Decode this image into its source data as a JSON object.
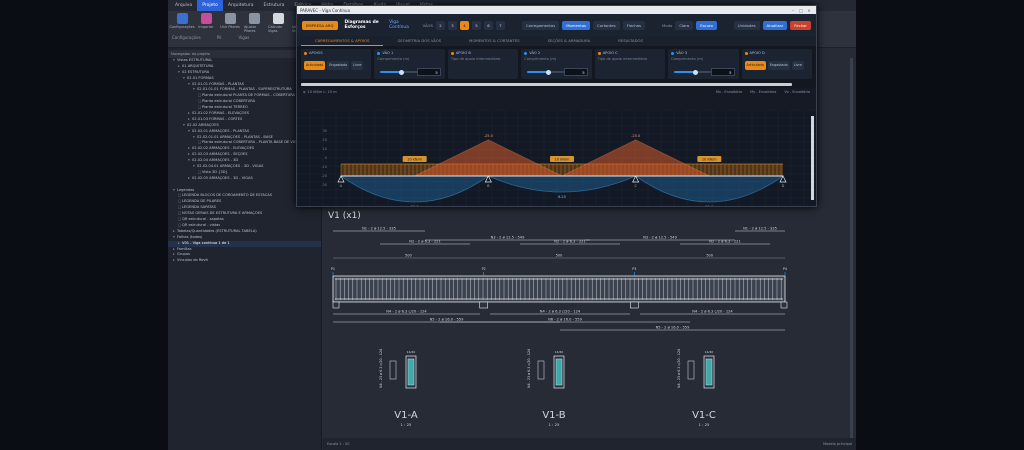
{
  "ribbon": {
    "tabs": [
      "Arquivo",
      "Projeto",
      "Arquitetura",
      "Estrutura",
      "Elétrico",
      "Hidro",
      "Detalhes",
      "Ajuda",
      "Visual",
      "Vistas"
    ],
    "active_tab": 1,
    "tools": [
      {
        "label": "Configurações",
        "color": "#3b6fd1"
      },
      {
        "label": "Importar",
        "color": "#c74d9c"
      },
      {
        "label": "Unir Pilares",
        "color": "#8a93a2"
      },
      {
        "label": "Ajustar Pilares",
        "color": "#8a93a2"
      },
      {
        "label": "Calcular Vigas",
        "color": "#d5d9e0"
      },
      {
        "label": "Verificar Vigas",
        "color": "#8a93a2"
      },
      {
        "label": "Relatórios",
        "color": "#e8a33c"
      }
    ],
    "groups": [
      "Configurações",
      "Pil.",
      "Vigas"
    ]
  },
  "tree": {
    "header": "Navegador do projeto",
    "rows": [
      {
        "t": "Vistas ESTRUTURAL",
        "d": 1,
        "i": "▾"
      },
      {
        "t": "01 ARQUITETURA",
        "d": 2,
        "i": "▸"
      },
      {
        "t": "02 ESTRUTURA",
        "d": 2,
        "i": "▾"
      },
      {
        "t": "02.01 FÔRMAS",
        "d": 3,
        "i": "▾"
      },
      {
        "t": "02.01.01 FÔRMAS - PLANTAS",
        "d": 4,
        "i": "▾"
      },
      {
        "t": "02.01.01.01 FÔRMAS - PLANTAS - SUPERESTRUTURA",
        "d": 5,
        "i": "▾"
      },
      {
        "t": "Planta estrutural PLANTA DE FÔRMAS - COBERTURA",
        "d": 6,
        "i": "□"
      },
      {
        "t": "Planta estrutural COBERTURA",
        "d": 6,
        "i": "□"
      },
      {
        "t": "Planta estrutural TÉRREO",
        "d": 6,
        "i": "□"
      },
      {
        "t": "02.01.02 FÔRMAS - ELEVAÇÕES",
        "d": 4,
        "i": "▸"
      },
      {
        "t": "02.01.03 FÔRMAS - CORTES",
        "d": 4,
        "i": "▸"
      },
      {
        "t": "02.02 ARMAÇÕES",
        "d": 3,
        "i": "▾"
      },
      {
        "t": "02.02.01 ARMAÇÕES - PLANTAS",
        "d": 4,
        "i": "▾"
      },
      {
        "t": "02.02.01.01 ARMAÇÕES - PLANTAS - BASE",
        "d": 5,
        "i": "▾"
      },
      {
        "t": "Planta estrutural COBERTURA - PLANTA BASE DE VIGAS",
        "d": 6,
        "i": "□"
      },
      {
        "t": "02.02.02 ARMAÇÕES - ELEVAÇÕES",
        "d": 4,
        "i": "▸"
      },
      {
        "t": "02.02.03 ARMAÇÕES - SEÇÕES",
        "d": 4,
        "i": "▸"
      },
      {
        "t": "02.02.04 ARMAÇÕES - 3D",
        "d": 4,
        "i": "▾"
      },
      {
        "t": "02.02.04.01 ARMAÇÕES - 3D - VIGAS",
        "d": 5,
        "i": "▾"
      },
      {
        "t": "Vista 3D {3D}",
        "d": 6,
        "i": "□"
      },
      {
        "t": "02.02.05 ARMAÇÕES - 3D - VIGAS",
        "d": 4,
        "i": "▸"
      },
      {
        "t": "",
        "d": 1,
        "i": ""
      },
      {
        "t": "Legendas",
        "d": 1,
        "i": "▾"
      },
      {
        "t": "LEGENDA BLOCOS DE COROAMENTO DE ESTACAS",
        "d": 2,
        "i": "□"
      },
      {
        "t": "LEGENDA DE PILARES",
        "d": 2,
        "i": "□"
      },
      {
        "t": "LEGENDA SAPATAS",
        "d": 2,
        "i": "□"
      },
      {
        "t": "NOTAS GERAIS DE ESTRUTURA E ARMAÇÕES",
        "d": 2,
        "i": "□"
      },
      {
        "t": "QR estrutural - sapatas",
        "d": 2,
        "i": "□"
      },
      {
        "t": "QR estrutural - vistas",
        "d": 2,
        "i": "□"
      },
      {
        "t": "Tabelas/Quantidades (ESTRUTURAL TABELA)",
        "d": 1,
        "i": "▸"
      },
      {
        "t": "Folhas (todas)",
        "d": 1,
        "i": "▾"
      },
      {
        "t": "V01 - Viga contínua 1 de 1",
        "d": 2,
        "i": "▸",
        "sel": true
      },
      {
        "t": "Famílias",
        "d": 1,
        "i": "▸"
      },
      {
        "t": "Grupos",
        "d": 1,
        "i": "▸"
      },
      {
        "t": "Vínculos do Revit",
        "d": 1,
        "i": "▸"
      }
    ]
  },
  "dialog": {
    "window_title": "PARAVEC - Viga Contínua",
    "brand_label": "EMPRESA ARQ",
    "heading": "Diagramas de Esforços",
    "subheading": "Viga Contínua",
    "span_label": "VÃOS",
    "spans": [
      "2",
      "3",
      "4",
      "5",
      "6",
      "7"
    ],
    "active_span": 2,
    "view_buttons": [
      {
        "label": "Carregamentos",
        "style": "normal"
      },
      {
        "label": "Momentos",
        "style": "blue"
      },
      {
        "label": "Cortantes",
        "style": "normal"
      },
      {
        "label": "Flechas",
        "style": "normal"
      }
    ],
    "theme_label": "Modo",
    "theme_buttons": [
      {
        "label": "Claro",
        "style": "normal"
      },
      {
        "label": "Escuro",
        "style": "blue"
      }
    ],
    "action_buttons": [
      {
        "label": "Unidades",
        "style": "normal"
      },
      {
        "label": "Atualizar",
        "style": "blue"
      },
      {
        "label": "Fechar",
        "style": "red"
      }
    ],
    "tabs": [
      "CARREGAMENTOS & APOIOS",
      "GEOMETRIA DOS VÃOS",
      "MOMENTOS & CORTANTES",
      "SEÇÕES & ARMADURA",
      "RESULTADOS"
    ],
    "active_tab": 0,
    "panels": [
      {
        "title": "APOIOS",
        "sub": "",
        "dot": "o",
        "fill": 0,
        "value": "",
        "buttons": [
          "Articulado",
          "Engastado",
          "Livre"
        ]
      },
      {
        "title": "VÃO 1",
        "sub": "Comprimento (m)",
        "dot": "b",
        "fill": 0.55,
        "value": "5",
        "buttons": []
      },
      {
        "title": "APOIO B",
        "sub": "Tipo de apoio intermediário",
        "dot": "o",
        "fill": 0,
        "value": "",
        "buttons": []
      },
      {
        "title": "VÃO 2",
        "sub": "Comprimento (m)",
        "dot": "b",
        "fill": 0.55,
        "value": "5",
        "buttons": []
      },
      {
        "title": "APOIO C",
        "sub": "Tipo de apoio intermediário",
        "dot": "o",
        "fill": 0,
        "value": "",
        "buttons": []
      },
      {
        "title": "VÃO 3",
        "sub": "Comprimento (m)",
        "dot": "b",
        "fill": 0.55,
        "value": "5",
        "buttons": []
      },
      {
        "title": "APOIO D",
        "sub": "",
        "dot": "o",
        "fill": 0,
        "value": "",
        "buttons": [
          "Articulado",
          "Engastado",
          "Livre"
        ]
      }
    ],
    "legend_left": "q: 10 kN/m   L: 15 m",
    "legend_right": [
      "Mx - Envoltória",
      "My - Envoltória",
      "Vx - Envoltória"
    ],
    "load_labels": [
      "10 kN/m",
      "10 kN/m",
      "10 kN/m"
    ],
    "moment_peak_labels": [
      "-25.0",
      "-25.0"
    ],
    "moment_span_labels": [
      "20.0",
      "6.25",
      "20.0"
    ],
    "axis_values": [
      "30",
      "20",
      "10",
      "0",
      "-10",
      "-20",
      "-30"
    ],
    "support_labels": [
      "A",
      "B",
      "C",
      "D"
    ]
  },
  "drawing": {
    "title": "V1 (x1)",
    "top_bars": [
      "N1 - 2 ø 12.5 - 335",
      "N2 - 2 ø 6.3 - 221",
      "N3 - 2 ø 12.5 - 549",
      "N2 - 2 ø 6.3 - 221",
      "N3 - 2 ø 12.5 - 549",
      "N2 - 2 ø 6.3 - 221",
      "N1 - 2 ø 12.5 - 335"
    ],
    "bottom_bars": [
      "N4 - 2 ø 6.3 c/20 - 124",
      "N4 - 2 ø 6.3 c/20 - 124",
      "N4 - 2 ø 6.3 c/20 - 124",
      "N5 - 2 ø 16.0 - 559",
      "N6 - 2 ø 16.0 - 559",
      "N5 - 2 ø 16.0 - 559"
    ],
    "dims": [
      "500",
      "500",
      "500"
    ],
    "pillar_labels": [
      "P1",
      "P2",
      "P3",
      "P4"
    ],
    "sections": [
      {
        "label": "V1-A",
        "scale": "1 : 25",
        "bar": "N4 - 23 ø 6.3 c/20 - 124",
        "width": "14/40"
      },
      {
        "label": "V1-B",
        "scale": "1 : 25",
        "bar": "N4 - 23 ø 6.3 c/20 - 124",
        "width": "14/40"
      },
      {
        "label": "V1-C",
        "scale": "1 : 25",
        "bar": "N4 - 23 ø 6.3 c/20 - 124",
        "width": "14/40"
      }
    ]
  },
  "status": {
    "left": "Escala 1 : 50",
    "right": "Modelo principal"
  }
}
